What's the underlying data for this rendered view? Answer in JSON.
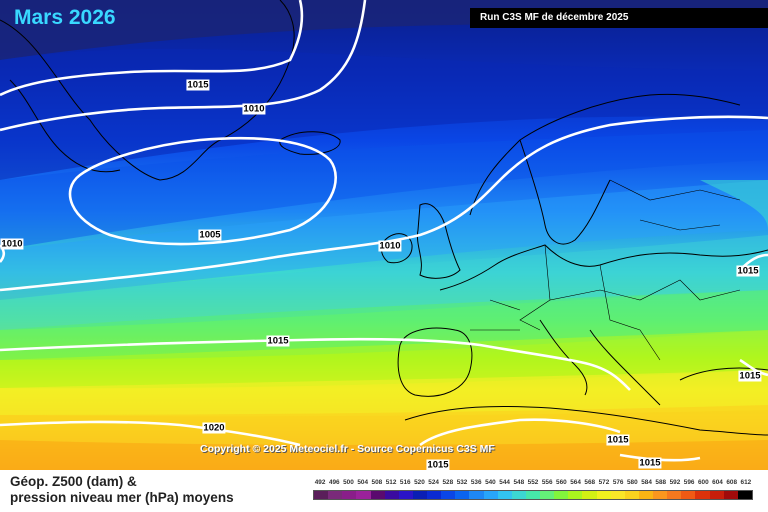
{
  "title": "Mars 2026",
  "run_label": "Run C3S MF de décembre 2025",
  "copyright": "Copyright © 2025 Meteociel.fr - Source Copernicus C3S MF",
  "legend": {
    "line1": "Géop. Z500 (dam) &",
    "line2": "pression niveau mer (hPa) moyens",
    "scale_values": [
      "492",
      "496",
      "500",
      "504",
      "508",
      "512",
      "516",
      "520",
      "524",
      "528",
      "532",
      "536",
      "540",
      "544",
      "548",
      "552",
      "556",
      "560",
      "564",
      "568",
      "572",
      "576",
      "580",
      "584",
      "588",
      "592",
      "596",
      "600",
      "604",
      "608",
      "612"
    ],
    "scale_colors": [
      "#5a1e5a",
      "#7a2a7a",
      "#8a1e8a",
      "#9b229b",
      "#5a0a6e",
      "#3a0aa0",
      "#2a14c8",
      "#0a1eb4",
      "#0a2ad2",
      "#0a46e6",
      "#0a64f0",
      "#1e87f5",
      "#28a5fa",
      "#32c3f0",
      "#3cd7d2",
      "#46e6aa",
      "#64f078",
      "#82f53c",
      "#aaf51e",
      "#d2f014",
      "#f0f01e",
      "#fae628",
      "#fad21e",
      "#fab414",
      "#fa961e",
      "#f5781e",
      "#f05a14",
      "#dc320a",
      "#c81e0a",
      "#a00a0a",
      "#000000"
    ]
  },
  "isobar_labels": [
    "1015",
    "1010",
    "1005",
    "1010",
    "1010",
    "1015",
    "1015",
    "1015",
    "1020",
    "1015",
    "1015",
    "1015"
  ]
}
